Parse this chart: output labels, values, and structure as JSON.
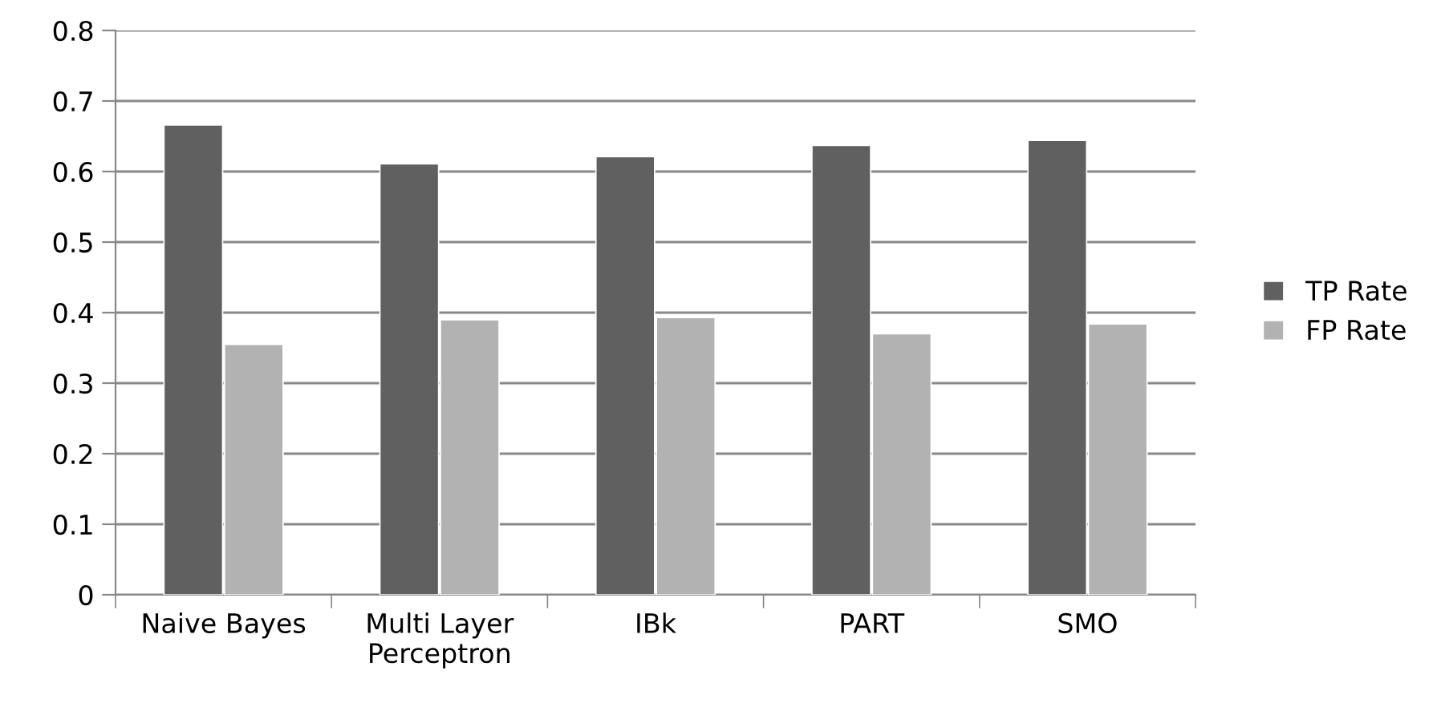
{
  "chart_data": {
    "type": "bar",
    "categories": [
      "Naive Bayes",
      "Multi Layer\nPerceptron",
      "IBk",
      "PART",
      "SMO"
    ],
    "series": [
      {
        "name": "TP Rate",
        "color": "#606060",
        "values": [
          0.666,
          0.611,
          0.621,
          0.637,
          0.644
        ]
      },
      {
        "name": "FP Rate",
        "color": "#b2b2b2",
        "values": [
          0.355,
          0.39,
          0.393,
          0.37,
          0.384
        ]
      }
    ],
    "ylim": [
      0,
      0.8
    ],
    "yticks": [
      {
        "value": 0,
        "label": "0"
      },
      0.1,
      0.2,
      0.3,
      0.4,
      0.5,
      0.6,
      0.7,
      0.8
    ],
    "grid": "y",
    "legend": "right"
  }
}
